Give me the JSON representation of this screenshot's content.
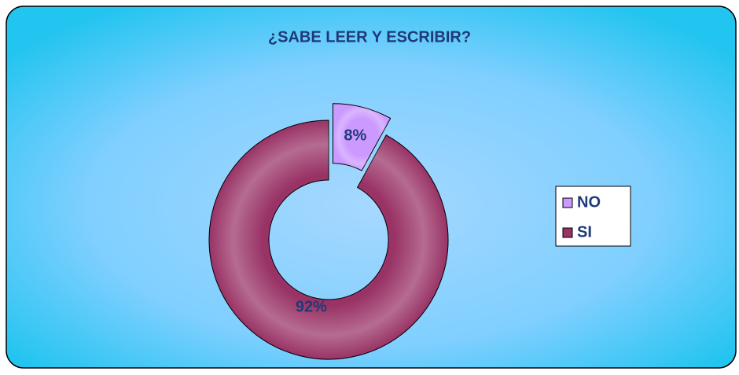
{
  "chart_data": {
    "type": "donut",
    "title": "¿SABE LEER Y ESCRIBIR?",
    "categories": [
      "NO",
      "SI"
    ],
    "values": [
      8,
      92
    ],
    "value_labels": [
      "8%",
      "92%"
    ],
    "colors": [
      "#cc99ff",
      "#993366"
    ],
    "legend": "right"
  }
}
